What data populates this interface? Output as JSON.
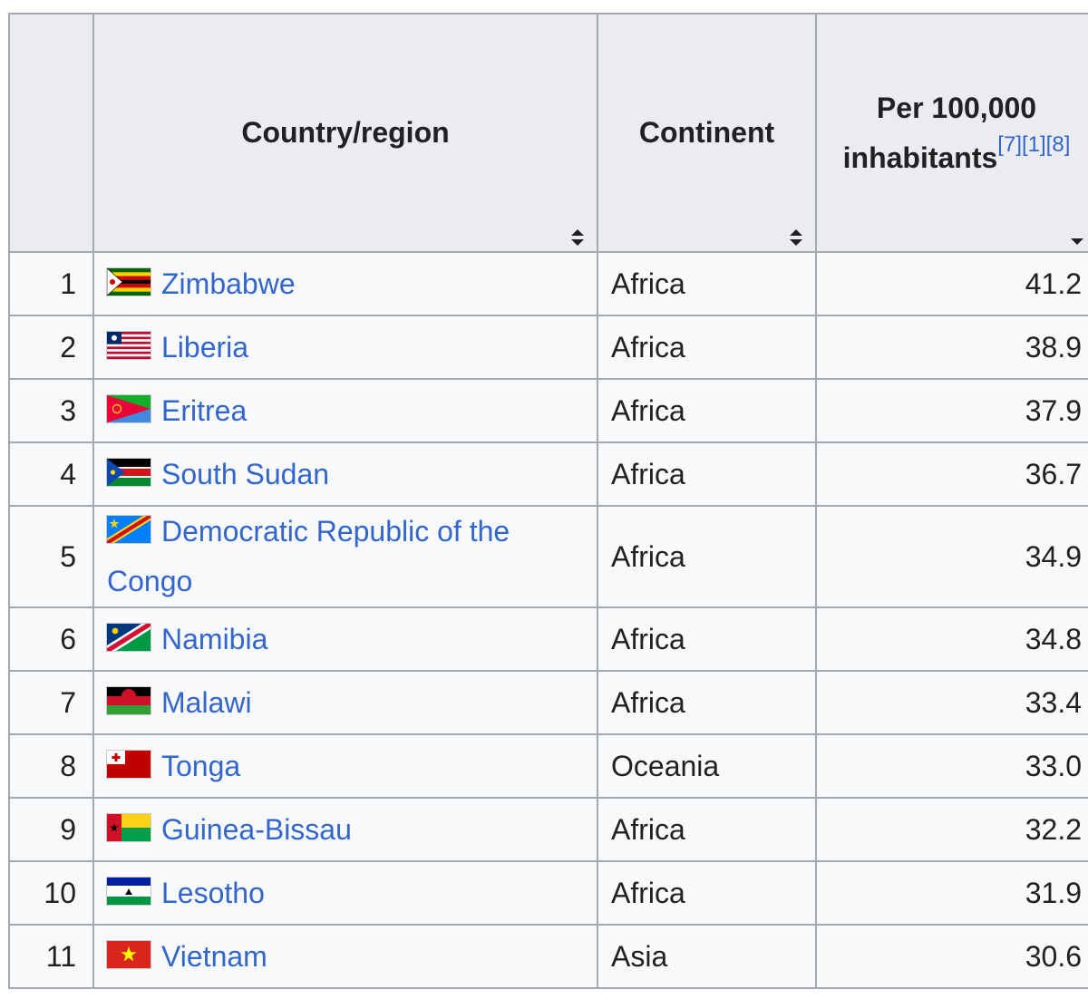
{
  "table": {
    "headers": {
      "rank": "",
      "country": "Country/region",
      "continent": "Continent",
      "rate": "Per 100,000 inhabitants",
      "rate_refs": [
        "[7]",
        "[1]",
        "[8]"
      ]
    },
    "sort": {
      "country": "sortable-both",
      "continent": "sortable-both",
      "rate": "sorted-descending"
    },
    "rows": [
      {
        "rank": "1",
        "country": "Zimbabwe",
        "flag": "zimbabwe-flag-icon",
        "continent": "Africa",
        "rate": "41.2"
      },
      {
        "rank": "2",
        "country": "Liberia",
        "flag": "liberia-flag-icon",
        "continent": "Africa",
        "rate": "38.9"
      },
      {
        "rank": "3",
        "country": "Eritrea",
        "flag": "eritrea-flag-icon",
        "continent": "Africa",
        "rate": "37.9"
      },
      {
        "rank": "4",
        "country": "South Sudan",
        "flag": "south-sudan-flag-icon",
        "continent": "Africa",
        "rate": "36.7"
      },
      {
        "rank": "5",
        "country": "Democratic Republic of the Congo",
        "flag": "dr-congo-flag-icon",
        "continent": "Africa",
        "rate": "34.9"
      },
      {
        "rank": "6",
        "country": "Namibia",
        "flag": "namibia-flag-icon",
        "continent": "Africa",
        "rate": "34.8"
      },
      {
        "rank": "7",
        "country": "Malawi",
        "flag": "malawi-flag-icon",
        "continent": "Africa",
        "rate": "33.4"
      },
      {
        "rank": "8",
        "country": "Tonga",
        "flag": "tonga-flag-icon",
        "continent": "Oceania",
        "rate": "33.0"
      },
      {
        "rank": "9",
        "country": "Guinea-Bissau",
        "flag": "guinea-bissau-flag-icon",
        "continent": "Africa",
        "rate": "32.2"
      },
      {
        "rank": "10",
        "country": "Lesotho",
        "flag": "lesotho-flag-icon",
        "continent": "Africa",
        "rate": "31.9"
      },
      {
        "rank": "11",
        "country": "Vietnam",
        "flag": "vietnam-flag-icon",
        "continent": "Asia",
        "rate": "30.6"
      }
    ]
  },
  "colors": {
    "link": "#3366cc",
    "header_bg": "#eaecf0",
    "cell_bg": "#f8f9fa",
    "border": "#a2a9b1",
    "text": "#202122"
  }
}
